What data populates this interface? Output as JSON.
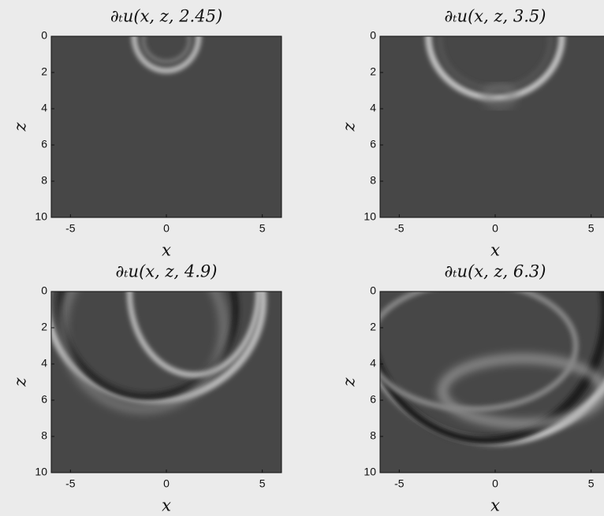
{
  "chart_data": [
    {
      "type": "image",
      "title": "∂ₜu(x, z, 2.45)",
      "x_label": "x",
      "y_label": "z",
      "xlim": [
        -6,
        6
      ],
      "ylim": [
        0,
        10
      ],
      "xticks": [
        -5,
        0,
        5
      ],
      "yticks": [
        0,
        2,
        4,
        6,
        8,
        10
      ],
      "y_reversed": true
    },
    {
      "type": "image",
      "title": "∂ₜu(x, z, 3.5)",
      "x_label": "x",
      "y_label": "z",
      "xlim": [
        -6,
        6
      ],
      "ylim": [
        0,
        10
      ],
      "xticks": [
        -5,
        0,
        5
      ],
      "yticks": [
        0,
        2,
        4,
        6,
        8,
        10
      ],
      "y_reversed": true
    },
    {
      "type": "image",
      "title": "∂ₜu(x, z, 4.9)",
      "x_label": "x",
      "y_label": "z",
      "xlim": [
        -6,
        6
      ],
      "ylim": [
        0,
        10
      ],
      "xticks": [
        -5,
        0,
        5
      ],
      "yticks": [
        0,
        2,
        4,
        6,
        8,
        10
      ],
      "y_reversed": true
    },
    {
      "type": "image",
      "title": "∂ₜu(x, z, 6.3)",
      "x_label": "x",
      "y_label": "z",
      "xlim": [
        -6,
        6
      ],
      "ylim": [
        0,
        10
      ],
      "xticks": [
        -5,
        0,
        5
      ],
      "yticks": [
        0,
        2,
        4,
        6,
        8,
        10
      ],
      "y_reversed": true
    }
  ]
}
